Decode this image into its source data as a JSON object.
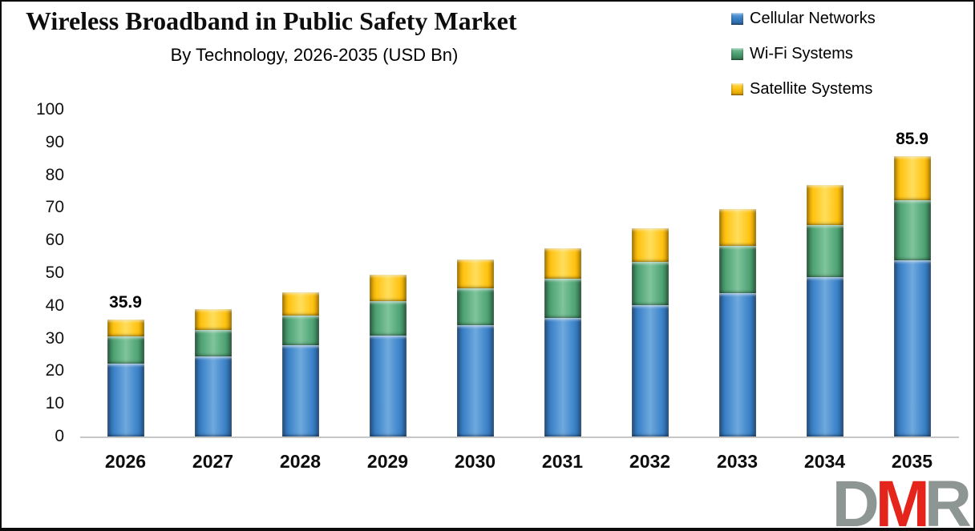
{
  "header": {
    "title": "Wireless Broadband in Public Safety Market",
    "subtitle": "By Technology, 2026-2035 (USD Bn)"
  },
  "chart_data": {
    "type": "bar",
    "stacked": true,
    "title": "Wireless Broadband in Public Safety Market",
    "subtitle": "By Technology, 2026-2035 (USD Bn)",
    "unit": "USD Bn",
    "categories": [
      "2026",
      "2027",
      "2028",
      "2029",
      "2030",
      "2031",
      "2032",
      "2033",
      "2034",
      "2035"
    ],
    "series": [
      {
        "name": "Cellular Networks",
        "color": "#3b82c8",
        "color_light": "#6fa9de",
        "color_dark": "#2b619c",
        "values": [
          22.4,
          24.4,
          27.9,
          31.0,
          34.1,
          36.3,
          40.2,
          43.9,
          48.8,
          53.9
        ]
      },
      {
        "name": "Wi-Fi Systems",
        "color": "#4fa375",
        "color_light": "#7fc49c",
        "color_dark": "#35744f",
        "values": [
          8.3,
          8.1,
          9.2,
          10.5,
          11.3,
          12.0,
          13.2,
          14.4,
          15.8,
          18.3
        ]
      },
      {
        "name": "Satellite Systems",
        "color": "#ffc312",
        "color_light": "#ffde5c",
        "color_dark": "#d79b00",
        "values": [
          5.2,
          6.5,
          7.0,
          8.0,
          8.7,
          9.3,
          10.3,
          11.2,
          12.3,
          13.7
        ]
      }
    ],
    "totals": [
      35.9,
      39.0,
      44.1,
      49.5,
      54.1,
      57.6,
      63.7,
      69.5,
      76.9,
      85.9
    ],
    "annotations": [
      {
        "category": "2026",
        "text": "35.9"
      },
      {
        "category": "2035",
        "text": "85.9"
      }
    ],
    "xlabel": "",
    "ylabel": "",
    "ylim": [
      0,
      100
    ],
    "ytick_step": 10,
    "grid": false,
    "legend_position": "top-right"
  },
  "logo": {
    "d": "D",
    "m": "M",
    "r": "R"
  }
}
